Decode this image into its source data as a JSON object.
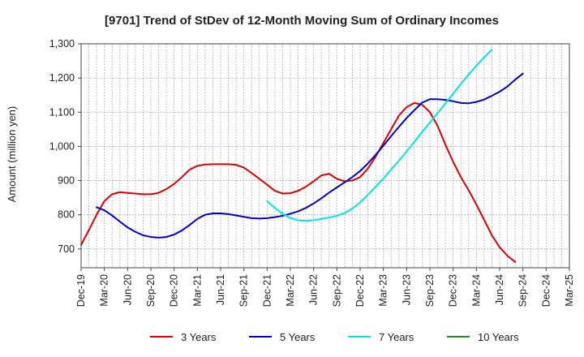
{
  "chart_data": {
    "type": "line",
    "title": "[9701]  Trend of StDev of 12-Month Moving Sum of Ordinary Incomes",
    "xlabel": "",
    "ylabel": "Amount (million yen)",
    "ylim": [
      645,
      1300
    ],
    "yticks": [
      700,
      800,
      900,
      1000,
      1100,
      1200,
      1300
    ],
    "ytick_labels": [
      "700",
      "800",
      "900",
      "1,000",
      "1,100",
      "1,200",
      "1,300"
    ],
    "x_ticks": [
      "Dec-19",
      "Mar-20",
      "Jun-20",
      "Sep-20",
      "Dec-20",
      "Mar-21",
      "Jun-21",
      "Sep-21",
      "Dec-21",
      "Mar-22",
      "Jun-22",
      "Sep-22",
      "Dec-22",
      "Mar-23",
      "Jun-23",
      "Sep-23",
      "Dec-23",
      "Mar-24",
      "Jun-24",
      "Sep-24",
      "Dec-24",
      "Mar-25"
    ],
    "grid": true,
    "legend_position": "bottom",
    "series": [
      {
        "name": "3 Years",
        "color": "#dd0000",
        "start_index": 0,
        "values": [
          712,
          755,
          800,
          840,
          860,
          866,
          864,
          862,
          860,
          860,
          864,
          875,
          890,
          910,
          932,
          943,
          947,
          948,
          948,
          948,
          946,
          938,
          922,
          905,
          888,
          870,
          862,
          863,
          870,
          882,
          898,
          915,
          920,
          905,
          898,
          900,
          910,
          935,
          970,
          1010,
          1050,
          1090,
          1115,
          1127,
          1122,
          1100,
          1060,
          1005,
          955,
          910,
          872,
          830,
          785,
          740,
          705,
          680,
          662
        ]
      },
      {
        "name": "5 Years",
        "color": "#0000cc",
        "start_index": 2,
        "values": [
          822,
          813,
          798,
          780,
          763,
          750,
          740,
          735,
          733,
          735,
          742,
          754,
          770,
          788,
          800,
          804,
          804,
          802,
          798,
          794,
          790,
          789,
          790,
          793,
          797,
          803,
          810,
          820,
          833,
          848,
          865,
          880,
          895,
          910,
          928,
          950,
          975,
          1002,
          1030,
          1057,
          1083,
          1106,
          1128,
          1138,
          1138,
          1136,
          1132,
          1127,
          1126,
          1130,
          1137,
          1148,
          1160,
          1175,
          1195,
          1213
        ]
      },
      {
        "name": "7 Years",
        "color": "#00e5e5",
        "start_index": 24,
        "values": [
          840,
          820,
          803,
          790,
          784,
          782,
          784,
          788,
          792,
          797,
          805,
          818,
          836,
          858,
          882,
          906,
          932,
          958,
          985,
          1013,
          1042,
          1070,
          1097,
          1125,
          1154,
          1183,
          1210,
          1236,
          1260,
          1283
        ]
      },
      {
        "name": "10 Years",
        "color": "#228b22",
        "start_index": 0,
        "values": []
      }
    ]
  }
}
